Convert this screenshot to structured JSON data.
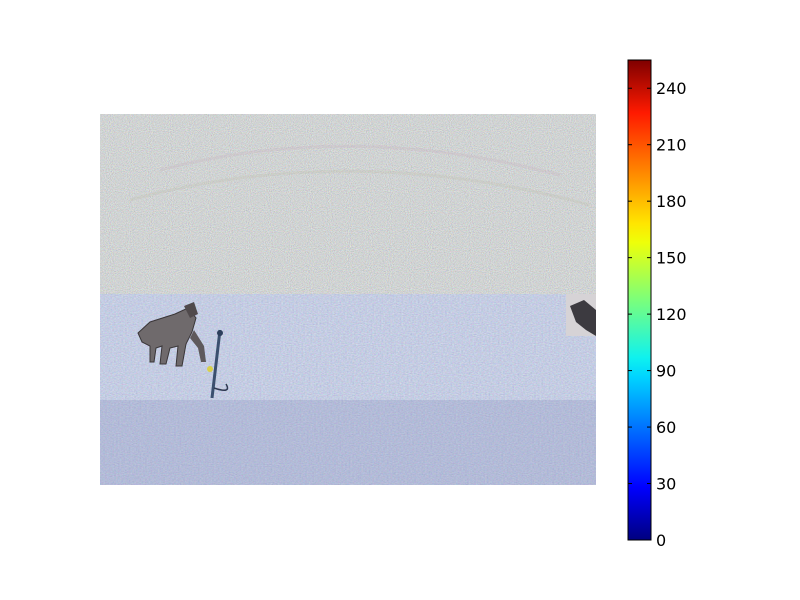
{
  "chart_data": {
    "type": "heatmap",
    "title": "",
    "xlabel": "",
    "ylabel": "",
    "image": {
      "description_regions": [
        {
          "name": "noise-region",
          "colors": [
            "#b3a8a0",
            "#a7a89b",
            "#c0a9b4",
            "#9fb0a3",
            "#b8b0a2",
            "#a9a3b6"
          ]
        },
        {
          "name": "grass-region",
          "colors": [
            "#8f9cc4",
            "#a2a9cf",
            "#7e8cbc",
            "#b5b7d6",
            "#93a0c8",
            "#c7c6df"
          ]
        }
      ]
    },
    "colorbar": {
      "colormap": "jet",
      "vmin": 0,
      "vmax": 255,
      "ticks": [
        0,
        30,
        60,
        90,
        120,
        150,
        180,
        210,
        240
      ],
      "tick_labels": [
        "0",
        "30",
        "60",
        "90",
        "120",
        "150",
        "180",
        "210",
        "240"
      ],
      "grid": false
    }
  }
}
